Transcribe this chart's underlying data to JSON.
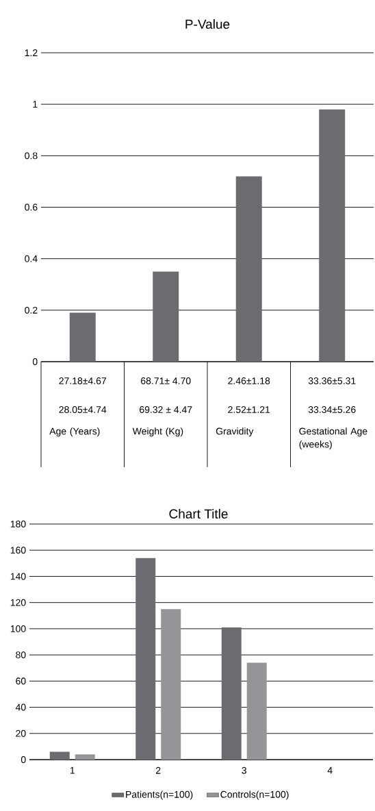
{
  "chart_data": [
    {
      "type": "bar",
      "title": "P-Value",
      "categories": [
        "Age (Years)",
        "Weight (Kg)",
        "Gravidity",
        "Gestational Age (weeks)"
      ],
      "values": [
        0.19,
        0.35,
        0.72,
        0.98
      ],
      "color": "#6b6c70",
      "ylim": [
        0,
        1.2
      ],
      "yticks": [
        0,
        0.2,
        0.4,
        0.6,
        0.8,
        1,
        1.2
      ],
      "grid": "y",
      "annotations": [
        "27.18±4.67",
        "68.71± 4.70",
        "2.46±1.18",
        "33.36±5.31",
        "28.05±4.74",
        "69.32 ± 4.47",
        "2.52±1.21",
        "33.34±5.26"
      ]
    },
    {
      "type": "bar",
      "title": "Chart Title",
      "categories": [
        "1",
        "2",
        "3",
        "4"
      ],
      "ylim": [
        0,
        180
      ],
      "yticks": [
        0,
        20,
        40,
        60,
        80,
        100,
        120,
        140,
        160,
        180
      ],
      "grid": "y",
      "legend": "bottom",
      "series": [
        {
          "name": "Patients(n=100)",
          "color": "#6b6c70",
          "values": [
            6,
            154,
            101,
            null
          ]
        },
        {
          "name": "Controls(n=100)",
          "color": "#949599",
          "values": [
            4,
            115,
            74,
            null
          ]
        }
      ]
    }
  ]
}
